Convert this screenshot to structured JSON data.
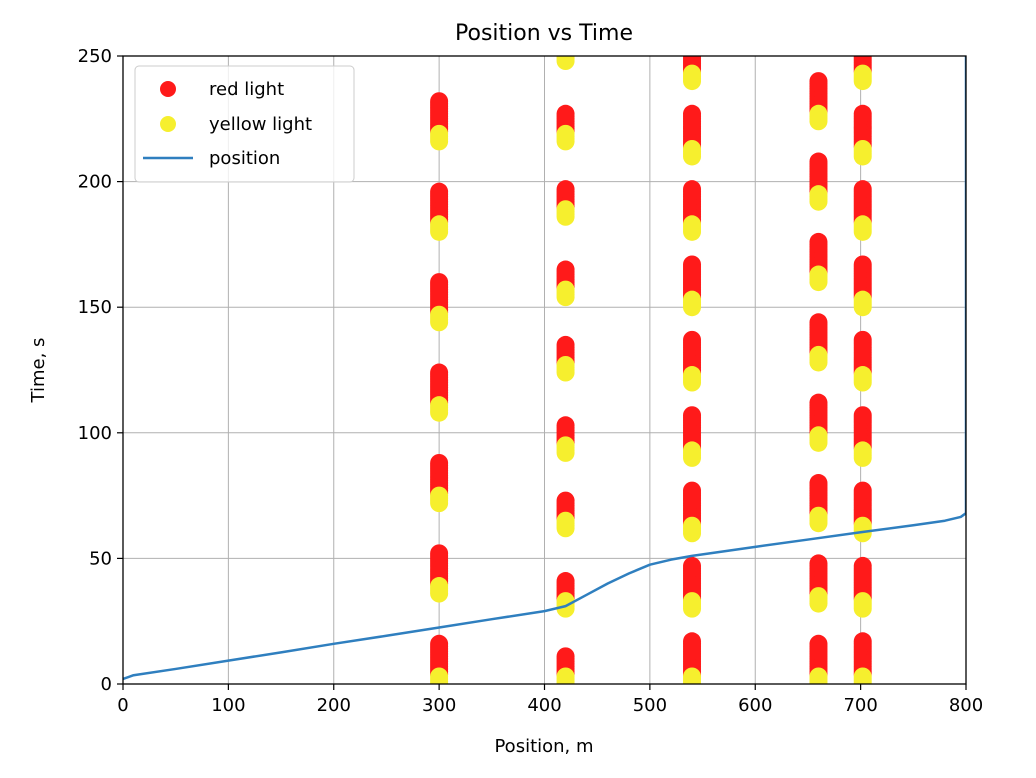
{
  "chart_data": {
    "type": "scatter",
    "title": "Position vs Time",
    "xlabel": "Position, m",
    "ylabel": "Time, s",
    "xlim": [
      0,
      800
    ],
    "ylim": [
      0,
      250
    ],
    "xticks": [
      0,
      100,
      200,
      300,
      400,
      500,
      600,
      700,
      800
    ],
    "yticks": [
      0,
      50,
      100,
      150,
      200,
      250
    ],
    "grid": true,
    "legend": {
      "placement": "upper-left",
      "entries": [
        "red light",
        "yellow light",
        "position"
      ]
    },
    "colors": {
      "red_light": "#ff1a1a",
      "yellow_light": "#f6ef2e",
      "position": "#2f7fbf",
      "grid": "#b0b0b0"
    },
    "traffic_lights": [
      {
        "x": 300,
        "red": [
          [
            4,
            16
          ],
          [
            40,
            52
          ],
          [
            76,
            88
          ],
          [
            112,
            124
          ],
          [
            148,
            160
          ],
          [
            184,
            196
          ],
          [
            220,
            232
          ]
        ],
        "yellow": [
          [
            0,
            3
          ],
          [
            36,
            39
          ],
          [
            72,
            75
          ],
          [
            108,
            111
          ],
          [
            144,
            147
          ],
          [
            180,
            183
          ],
          [
            216,
            219
          ]
        ]
      },
      {
        "x": 420,
        "red": [
          [
            4,
            11
          ],
          [
            34,
            41
          ],
          [
            66,
            73
          ],
          [
            96,
            103
          ],
          [
            128,
            135
          ],
          [
            158,
            165
          ],
          [
            190,
            197
          ],
          [
            220,
            227
          ]
        ],
        "yellow": [
          [
            0,
            3
          ],
          [
            30,
            33
          ],
          [
            62,
            65
          ],
          [
            92,
            95
          ],
          [
            124,
            127
          ],
          [
            154,
            157
          ],
          [
            186,
            189
          ],
          [
            216,
            219
          ],
          [
            248,
            250
          ]
        ]
      },
      {
        "x": 540,
        "red": [
          [
            4,
            17
          ],
          [
            34,
            47
          ],
          [
            64,
            77
          ],
          [
            94,
            107
          ],
          [
            124,
            137
          ],
          [
            154,
            167
          ],
          [
            184,
            197
          ],
          [
            214,
            227
          ],
          [
            244,
            250
          ]
        ],
        "yellow": [
          [
            0,
            3
          ],
          [
            30,
            33
          ],
          [
            60,
            63
          ],
          [
            90,
            93
          ],
          [
            120,
            123
          ],
          [
            150,
            153
          ],
          [
            180,
            183
          ],
          [
            210,
            213
          ],
          [
            240,
            243
          ]
        ]
      },
      {
        "x": 660,
        "red": [
          [
            4,
            16
          ],
          [
            36,
            48
          ],
          [
            68,
            80
          ],
          [
            100,
            112
          ],
          [
            132,
            144
          ],
          [
            164,
            176
          ],
          [
            196,
            208
          ],
          [
            228,
            240
          ]
        ],
        "yellow": [
          [
            0,
            3
          ],
          [
            32,
            35
          ],
          [
            64,
            67
          ],
          [
            96,
            99
          ],
          [
            128,
            131
          ],
          [
            160,
            163
          ],
          [
            192,
            195
          ],
          [
            224,
            227
          ]
        ]
      },
      {
        "x": 702,
        "red": [
          [
            4,
            17
          ],
          [
            34,
            47
          ],
          [
            64,
            77
          ],
          [
            94,
            107
          ],
          [
            124,
            137
          ],
          [
            154,
            167
          ],
          [
            184,
            197
          ],
          [
            214,
            227
          ],
          [
            244,
            250
          ]
        ],
        "yellow": [
          [
            0,
            3
          ],
          [
            30,
            33
          ],
          [
            60,
            63
          ],
          [
            90,
            93
          ],
          [
            120,
            123
          ],
          [
            150,
            153
          ],
          [
            180,
            183
          ],
          [
            210,
            213
          ],
          [
            240,
            243
          ]
        ]
      }
    ],
    "position_series": {
      "name": "position",
      "points": [
        [
          0,
          2
        ],
        [
          10,
          3.5
        ],
        [
          50,
          6
        ],
        [
          100,
          9.3
        ],
        [
          150,
          12.6
        ],
        [
          200,
          16
        ],
        [
          250,
          19.2
        ],
        [
          300,
          22.5
        ],
        [
          350,
          25.8
        ],
        [
          400,
          29
        ],
        [
          420,
          31
        ],
        [
          440,
          35.5
        ],
        [
          460,
          40
        ],
        [
          480,
          44
        ],
        [
          500,
          47.5
        ],
        [
          520,
          49.5
        ],
        [
          540,
          51
        ],
        [
          560,
          52.2
        ],
        [
          600,
          54.6
        ],
        [
          650,
          57.5
        ],
        [
          700,
          60.4
        ],
        [
          750,
          63.2
        ],
        [
          780,
          65
        ],
        [
          795,
          66.5
        ],
        [
          800,
          68
        ],
        [
          800,
          250
        ]
      ]
    }
  }
}
